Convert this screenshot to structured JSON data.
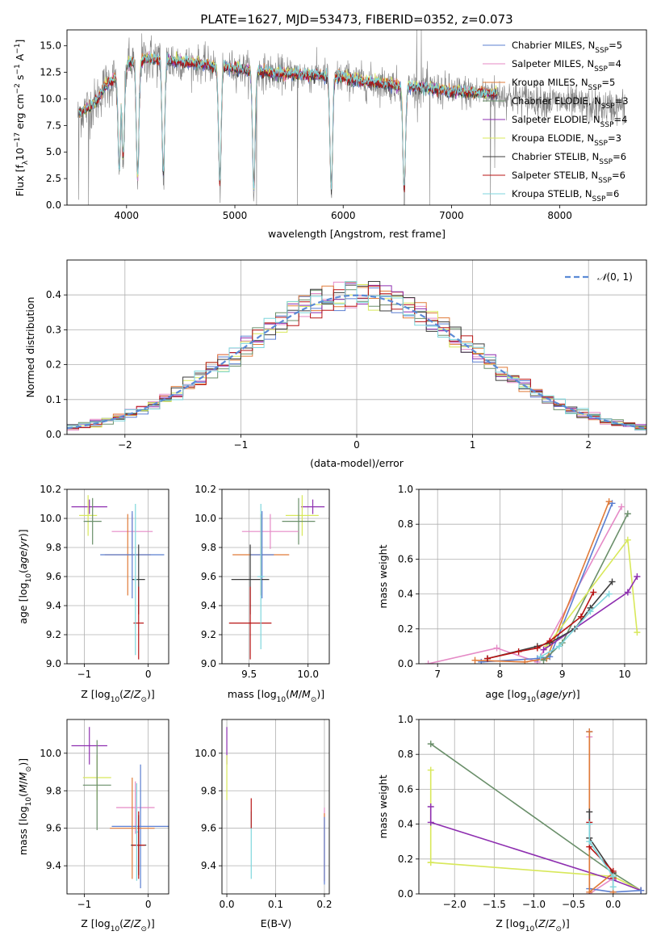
{
  "figure": {
    "title": "PLATE=1627, MJD=53473, FIBERID=0352, z=0.073"
  },
  "model_colors": {
    "Chabrier MILES": "#5b7fd1",
    "Salpeter MILES": "#e58ac6",
    "Kroupa MILES": "#e07b39",
    "Chabrier ELODIE": "#6a8f6a",
    "Salpeter ELODIE": "#8e2fb0",
    "Kroupa ELODIE": "#d8e85a",
    "Chabrier STELIB": "#3d3d3d",
    "Salpeter STELIB": "#b81414",
    "Kroupa STELIB": "#7ed6dc"
  },
  "chart_data": [
    {
      "id": "spectrum",
      "type": "line",
      "title": "PLATE=1627, MJD=53473, FIBERID=0352, z=0.073",
      "xlabel": "wavelength [Angstrom, rest frame]",
      "ylabel": "Flux [f_λ10^-17 erg cm^-2 s^-1 A^-1]",
      "xlim": [
        3450,
        8800
      ],
      "ylim": [
        0,
        16.5
      ],
      "xticks": [
        4000,
        5000,
        6000,
        7000,
        8000
      ],
      "yticks": [
        0.0,
        2.5,
        5.0,
        7.5,
        10.0,
        12.5,
        15.0
      ],
      "grid": false,
      "legend_position": "top-right",
      "legend": [
        {
          "name": "Chabrier MILES",
          "n_ssp": "5",
          "color": "#5b7fd1"
        },
        {
          "name": "Salpeter MILES",
          "n_ssp": "4",
          "color": "#e58ac6"
        },
        {
          "name": "Kroupa MILES",
          "n_ssp": "5",
          "color": "#e07b39"
        },
        {
          "name": "Chabrier ELODIE",
          "n_ssp": "3",
          "color": "#6a8f6a"
        },
        {
          "name": "Salpeter ELODIE",
          "n_ssp": "4",
          "color": "#8e2fb0"
        },
        {
          "name": "Kroupa ELODIE",
          "n_ssp": "3",
          "color": "#d8e85a"
        },
        {
          "name": "Chabrier STELIB",
          "n_ssp": "6",
          "color": "#3d3d3d"
        },
        {
          "name": "Salpeter STELIB",
          "n_ssp": "6",
          "color": "#b81414"
        },
        {
          "name": "Kroupa STELIB",
          "n_ssp": "6",
          "color": "#7ed6dc"
        }
      ],
      "data_color": "#808080",
      "data_continuum": [
        [
          3550,
          8.6
        ],
        [
          3700,
          9.5
        ],
        [
          3800,
          11.2
        ],
        [
          3900,
          12.0
        ],
        [
          4000,
          13.2
        ],
        [
          4100,
          13.6
        ],
        [
          4200,
          13.8
        ],
        [
          4400,
          13.6
        ],
        [
          4600,
          13.4
        ],
        [
          4800,
          13.1
        ],
        [
          5000,
          12.9
        ],
        [
          5200,
          12.6
        ],
        [
          5400,
          12.4
        ],
        [
          5600,
          12.3
        ],
        [
          5800,
          12.2
        ],
        [
          6000,
          12.0
        ],
        [
          6200,
          11.6
        ],
        [
          6400,
          11.4
        ],
        [
          6600,
          11.1
        ],
        [
          6800,
          11.0
        ],
        [
          7000,
          10.7
        ],
        [
          7200,
          10.6
        ],
        [
          7400,
          10.5
        ],
        [
          7600,
          10.1
        ],
        [
          7800,
          9.9
        ],
        [
          8000,
          9.7
        ],
        [
          8200,
          9.4
        ],
        [
          8400,
          9.2
        ],
        [
          8600,
          9.3
        ]
      ],
      "absorption_lines": [
        [
          3933,
          3.0
        ],
        [
          3968,
          4.0
        ],
        [
          4102,
          2.0
        ],
        [
          4340,
          2.5
        ],
        [
          4861,
          1.5
        ],
        [
          5175,
          1.2
        ],
        [
          5890,
          1.0
        ],
        [
          6563,
          1.0
        ]
      ],
      "data_spikes": [
        [
          3560,
          0.5
        ],
        [
          3650,
          0.0
        ],
        [
          5200,
          0.0
        ],
        [
          5577,
          0.0
        ],
        [
          6680,
          16.5
        ],
        [
          6720,
          16.5
        ],
        [
          6800,
          0.0
        ],
        [
          7360,
          0.0
        ],
        [
          7400,
          3.5
        ]
      ]
    },
    {
      "id": "residuals",
      "type": "histogram",
      "xlabel": "(data-model)/error",
      "ylabel": "Normed distribution",
      "xlim": [
        -2.5,
        2.5
      ],
      "ylim": [
        0,
        0.5
      ],
      "xticks": [
        -2,
        -1,
        0,
        1,
        2
      ],
      "yticks": [
        0.0,
        0.1,
        0.2,
        0.3,
        0.4
      ],
      "grid": true,
      "legend_position": "top-right",
      "reference_curve": {
        "name": "N(0,1)",
        "mean": 0,
        "sigma": 1,
        "color": "#5b8ad6"
      },
      "bin_width": 0.1
    },
    {
      "id": "age_vs_Z",
      "type": "scatter",
      "xlabel": "Z [log10(Z/Z⊙)]",
      "ylabel": "age [log10(age/yr)]",
      "xlim": [
        -1.27,
        0.32
      ],
      "ylim": [
        9.0,
        10.2
      ],
      "xticks": [
        -1,
        0
      ],
      "yticks": [
        9.0,
        9.2,
        9.4,
        9.6,
        9.8,
        10.0,
        10.2
      ],
      "grid": true,
      "points": [
        {
          "color": "#8e2fb0",
          "x": -0.92,
          "xerr": 0.28,
          "y": 10.08,
          "yerr": 0.05
        },
        {
          "color": "#d8e85a",
          "x": -0.94,
          "xerr": 0.14,
          "y": 10.02,
          "yerr": 0.14
        },
        {
          "color": "#6a8f6a",
          "x": -0.87,
          "xerr": 0.14,
          "y": 9.98,
          "yerr": 0.16
        },
        {
          "color": "#e58ac6",
          "x": -0.25,
          "xerr": 0.32,
          "y": 9.91,
          "yerr": 0.12
        },
        {
          "color": "#e07b39",
          "x": -0.32,
          "xerr": 0.36,
          "y": 9.75,
          "yerr": 0.28
        },
        {
          "color": "#5b7fd1",
          "x": -0.25,
          "xerr": 0.5,
          "y": 9.75,
          "yerr": 0.3
        },
        {
          "color": "#3d3d3d",
          "x": -0.15,
          "xerr": 0.1,
          "y": 9.58,
          "yerr": 0.24
        },
        {
          "color": "#b81414",
          "x": -0.15,
          "xerr": 0.08,
          "y": 9.28,
          "yerr": 0.25
        },
        {
          "color": "#7ed6dc",
          "x": -0.2,
          "xerr": 0.02,
          "y": 9.58,
          "yerr": 0.52
        }
      ]
    },
    {
      "id": "age_vs_mass",
      "type": "scatter",
      "xlabel": "mass [log10(M/M⊙)]",
      "ylabel": "",
      "xlim": [
        9.27,
        10.18
      ],
      "ylim": [
        9.0,
        10.2
      ],
      "xticks": [
        9.5,
        10.0
      ],
      "yticks": [
        9.0,
        9.2,
        9.4,
        9.6,
        9.8,
        10.0,
        10.2
      ],
      "grid": true,
      "points": [
        {
          "color": "#8e2fb0",
          "x": 10.04,
          "xerr": 0.1,
          "y": 10.08,
          "yerr": 0.05
        },
        {
          "color": "#d8e85a",
          "x": 9.95,
          "xerr": 0.14,
          "y": 10.02,
          "yerr": 0.14
        },
        {
          "color": "#6a8f6a",
          "x": 9.92,
          "xerr": 0.14,
          "y": 9.98,
          "yerr": 0.16
        },
        {
          "color": "#e58ac6",
          "x": 9.68,
          "xerr": 0.24,
          "y": 9.91,
          "yerr": 0.12
        },
        {
          "color": "#e07b39",
          "x": 9.6,
          "xerr": 0.24,
          "y": 9.75,
          "yerr": 0.28
        },
        {
          "color": "#5b7fd1",
          "x": 9.61,
          "xerr": 0.1,
          "y": 9.75,
          "yerr": 0.3
        },
        {
          "color": "#3d3d3d",
          "x": 9.51,
          "xerr": 0.16,
          "y": 9.58,
          "yerr": 0.24
        },
        {
          "color": "#b81414",
          "x": 9.51,
          "xerr": 0.18,
          "y": 9.28,
          "yerr": 0.25
        },
        {
          "color": "#7ed6dc",
          "x": 9.6,
          "xerr": 0.03,
          "y": 9.6,
          "yerr": 0.5
        }
      ]
    },
    {
      "id": "weight_vs_age",
      "type": "line",
      "xlabel": "age [log10(age/yr)]",
      "ylabel": "mass weight",
      "xlim": [
        6.7,
        10.35
      ],
      "ylim": [
        0,
        1.0
      ],
      "xticks": [
        7,
        8,
        9,
        10
      ],
      "yticks": [
        0.0,
        0.2,
        0.4,
        0.6,
        0.8,
        1.0
      ],
      "grid": true,
      "series": [
        {
          "color": "#e58ac6",
          "x": [
            6.85,
            7.95,
            8.6,
            9.95
          ],
          "y": [
            0.0,
            0.09,
            0.01,
            0.9
          ]
        },
        {
          "color": "#5b7fd1",
          "x": [
            7.7,
            8.6,
            8.8,
            9.8
          ],
          "y": [
            0.01,
            0.03,
            0.04,
            0.92
          ]
        },
        {
          "color": "#e07b39",
          "x": [
            7.6,
            8.4,
            8.75,
            9.75
          ],
          "y": [
            0.02,
            0.01,
            0.03,
            0.93
          ]
        },
        {
          "color": "#6a8f6a",
          "x": [
            8.7,
            9.0,
            10.05
          ],
          "y": [
            0.02,
            0.12,
            0.86
          ]
        },
        {
          "color": "#d8e85a",
          "x": [
            8.75,
            10.05,
            10.2
          ],
          "y": [
            0.1,
            0.71,
            0.18
          ]
        },
        {
          "color": "#8e2fb0",
          "x": [
            8.7,
            10.05,
            10.2
          ],
          "y": [
            0.08,
            0.41,
            0.5
          ]
        },
        {
          "color": "#3d3d3d",
          "x": [
            7.8,
            8.6,
            8.8,
            9.2,
            9.45,
            9.8
          ],
          "y": [
            0.03,
            0.1,
            0.12,
            0.2,
            0.32,
            0.47
          ]
        },
        {
          "color": "#b81414",
          "x": [
            7.8,
            8.3,
            8.6,
            8.8,
            9.3,
            9.5
          ],
          "y": [
            0.03,
            0.07,
            0.09,
            0.13,
            0.27,
            0.41
          ]
        },
        {
          "color": "#7ed6dc",
          "x": [
            8.65,
            8.95,
            9.45,
            9.75
          ],
          "y": [
            0.04,
            0.1,
            0.3,
            0.4
          ]
        }
      ]
    },
    {
      "id": "mass_vs_Z",
      "type": "scatter",
      "xlabel": "Z [log10(Z/Z⊙)]",
      "ylabel": "mass [log10(M/M⊙)]",
      "xlim": [
        -1.27,
        0.32
      ],
      "ylim": [
        9.25,
        10.18
      ],
      "xticks": [
        -1,
        0
      ],
      "yticks": [
        9.4,
        9.6,
        9.8,
        10.0
      ],
      "grid": true,
      "points": [
        {
          "color": "#8e2fb0",
          "x": -0.92,
          "xerr": 0.28,
          "y": 10.04,
          "yerr": 0.1
        },
        {
          "color": "#d8e85a",
          "x": -0.8,
          "xerr": 0.22,
          "y": 9.87,
          "yerr": 0.12
        },
        {
          "color": "#6a8f6a",
          "x": -0.8,
          "xerr": 0.22,
          "y": 9.83,
          "yerr": 0.24
        },
        {
          "color": "#e58ac6",
          "x": -0.2,
          "xerr": 0.3,
          "y": 9.71,
          "yerr": 0.14
        },
        {
          "color": "#5b7fd1",
          "x": -0.12,
          "xerr": 0.45,
          "y": 9.61,
          "yerr": 0.33
        },
        {
          "color": "#e07b39",
          "x": -0.25,
          "xerr": 0.35,
          "y": 9.6,
          "yerr": 0.27
        },
        {
          "color": "#3d3d3d",
          "x": -0.15,
          "xerr": 0.12,
          "y": 9.51,
          "yerr": 0.16
        },
        {
          "color": "#b81414",
          "x": -0.15,
          "xerr": 0.1,
          "y": 9.51,
          "yerr": 0.18
        },
        {
          "color": "#7ed6dc",
          "x": -0.18,
          "xerr": 0.02,
          "y": 9.58,
          "yerr": 0.26
        }
      ]
    },
    {
      "id": "mass_vs_ebv",
      "type": "scatter",
      "xlabel": "E(B-V)",
      "ylabel": "",
      "xlim": [
        -0.01,
        0.21
      ],
      "ylim": [
        9.25,
        10.18
      ],
      "xticks": [
        0.0,
        0.1,
        0.2
      ],
      "yticks": [
        9.4,
        9.6,
        9.8,
        10.0
      ],
      "grid": true,
      "points": [
        {
          "color": "#8e2fb0",
          "x": 0.0,
          "xerr": 0.0,
          "y": 10.04,
          "yerr": 0.1
        },
        {
          "color": "#d8e85a",
          "x": 0.0,
          "xerr": 0.0,
          "y": 9.87,
          "yerr": 0.12
        },
        {
          "color": "#7ed6dc",
          "x": 0.05,
          "xerr": 0.0,
          "y": 9.51,
          "yerr": 0.18
        },
        {
          "color": "#b81414",
          "x": 0.05,
          "xerr": 0.0,
          "y": 9.68,
          "yerr": 0.08
        },
        {
          "color": "#e58ac6",
          "x": 0.2,
          "xerr": 0.0,
          "y": 9.51,
          "yerr": 0.2
        },
        {
          "color": "#e07b39",
          "x": 0.2,
          "xerr": 0.0,
          "y": 9.5,
          "yerr": 0.18
        },
        {
          "color": "#5b7fd1",
          "x": 0.2,
          "xerr": 0.0,
          "y": 9.48,
          "yerr": 0.18
        }
      ]
    },
    {
      "id": "weight_vs_Z",
      "type": "line",
      "xlabel": "Z [log10(Z/Z⊙)]",
      "ylabel": "mass weight",
      "xlim": [
        -2.45,
        0.42
      ],
      "ylim": [
        0,
        1.0
      ],
      "xticks": [
        -2.0,
        -1.5,
        -1.0,
        -0.5,
        0.0
      ],
      "yticks": [
        0.0,
        0.2,
        0.4,
        0.6,
        0.8,
        1.0
      ],
      "grid": true,
      "series": [
        {
          "color": "#6a8f6a",
          "x": [
            -2.3,
            0.0,
            0.35
          ],
          "y": [
            0.86,
            0.12,
            0.02
          ]
        },
        {
          "color": "#d8e85a",
          "x": [
            -2.3,
            -2.3,
            -2.3,
            0.0,
            0.35
          ],
          "y": [
            0.71,
            0.18,
            0.18,
            0.1,
            0.02
          ]
        },
        {
          "color": "#8e2fb0",
          "x": [
            -2.3,
            -2.3,
            0.0,
            0.35
          ],
          "y": [
            0.5,
            0.41,
            0.08,
            0.02
          ]
        },
        {
          "color": "#e58ac6",
          "x": [
            -0.3,
            -0.3,
            0.0,
            0.0
          ],
          "y": [
            0.9,
            0.0,
            0.09,
            0.01
          ]
        },
        {
          "color": "#5b7fd1",
          "x": [
            -0.3,
            -0.3,
            0.0,
            0.35
          ],
          "y": [
            0.93,
            0.03,
            0.01,
            0.02
          ]
        },
        {
          "color": "#e07b39",
          "x": [
            -0.3,
            -0.3,
            0.0,
            0.0
          ],
          "y": [
            0.93,
            0.01,
            0.12,
            0.01
          ]
        },
        {
          "color": "#3d3d3d",
          "x": [
            -0.3,
            -0.3,
            0.0,
            0.0
          ],
          "y": [
            0.47,
            0.32,
            0.12,
            0.1
          ]
        },
        {
          "color": "#b81414",
          "x": [
            -0.3,
            -0.3,
            0.0,
            0.0
          ],
          "y": [
            0.41,
            0.27,
            0.13,
            0.09
          ]
        },
        {
          "color": "#7ed6dc",
          "x": [
            -0.3,
            -0.3,
            0.0,
            0.0
          ],
          "y": [
            0.4,
            0.3,
            0.1,
            0.04
          ]
        }
      ]
    }
  ]
}
